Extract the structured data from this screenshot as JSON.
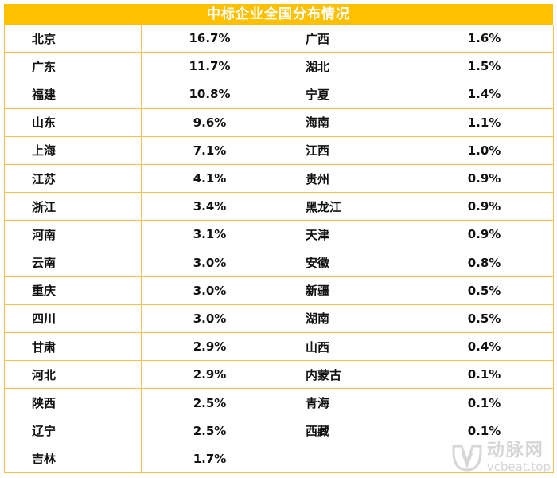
{
  "title": "中标企业全国分布情况",
  "rows": [
    [
      {
        "p": "北京",
        "v": "16.7%"
      },
      {
        "p": "广西",
        "v": "1.6%"
      }
    ],
    [
      {
        "p": "广东",
        "v": "11.7%"
      },
      {
        "p": "湖北",
        "v": "1.5%"
      }
    ],
    [
      {
        "p": "福建",
        "v": "10.8%"
      },
      {
        "p": "宁夏",
        "v": "1.4%"
      }
    ],
    [
      {
        "p": "山东",
        "v": "9.6%"
      },
      {
        "p": "海南",
        "v": "1.1%"
      }
    ],
    [
      {
        "p": "上海",
        "v": "7.1%"
      },
      {
        "p": "江西",
        "v": "1.0%"
      }
    ],
    [
      {
        "p": "江苏",
        "v": "4.1%"
      },
      {
        "p": "贵州",
        "v": "0.9%"
      }
    ],
    [
      {
        "p": "浙江",
        "v": "3.4%"
      },
      {
        "p": "黑龙江",
        "v": "0.9%"
      }
    ],
    [
      {
        "p": "河南",
        "v": "3.1%"
      },
      {
        "p": "天津",
        "v": "0.9%"
      }
    ],
    [
      {
        "p": "云南",
        "v": "3.0%"
      },
      {
        "p": "安徽",
        "v": "0.8%"
      }
    ],
    [
      {
        "p": "重庆",
        "v": "3.0%"
      },
      {
        "p": "新疆",
        "v": "0.5%"
      }
    ],
    [
      {
        "p": "四川",
        "v": "3.0%"
      },
      {
        "p": "湖南",
        "v": "0.5%"
      }
    ],
    [
      {
        "p": "甘肃",
        "v": "2.9%"
      },
      {
        "p": "山西",
        "v": "0.4%"
      }
    ],
    [
      {
        "p": "河北",
        "v": "2.9%"
      },
      {
        "p": "内蒙古",
        "v": "0.1%"
      }
    ],
    [
      {
        "p": "陕西",
        "v": "2.5%"
      },
      {
        "p": "青海",
        "v": "0.1%"
      }
    ],
    [
      {
        "p": "辽宁",
        "v": "2.5%"
      },
      {
        "p": "西藏",
        "v": "0.1%"
      }
    ],
    [
      {
        "p": "吉林",
        "v": "1.7%"
      },
      {
        "p": "",
        "v": ""
      }
    ]
  ],
  "watermark": {
    "cn": "动脉网",
    "en": "vcbeat.top",
    "icon": "vb-logo-icon"
  },
  "colors": {
    "accent": "#ffc000",
    "border": "#f3c24b"
  }
}
